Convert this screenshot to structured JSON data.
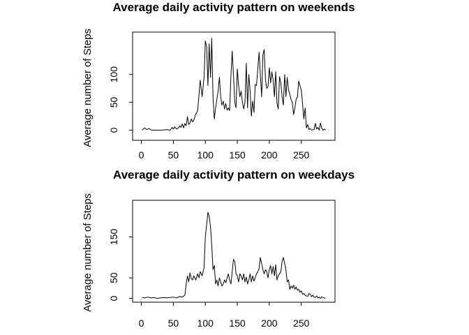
{
  "chart_data": [
    {
      "type": "line",
      "title": "Average daily activity pattern on weekends",
      "xlabel": "",
      "ylabel": "Average number of Steps",
      "xlim": [
        1,
        288
      ],
      "ylim": [
        0,
        166
      ],
      "xticks": [
        0,
        50,
        100,
        150,
        200,
        250
      ],
      "yticks": [
        0,
        50,
        100
      ],
      "grid": false,
      "legend": "none",
      "line_color": "#000000",
      "series": [
        {
          "x": [
            1,
            5,
            8,
            12,
            16,
            20,
            30,
            40,
            45,
            48,
            50,
            52,
            55,
            58,
            60,
            62,
            64,
            66,
            68,
            70,
            72,
            74,
            76,
            78,
            80,
            82,
            85,
            88,
            92,
            95,
            98,
            100,
            102,
            104,
            106,
            108,
            110,
            112,
            114,
            116,
            118,
            120,
            122,
            124,
            126,
            128,
            130,
            132,
            134,
            136,
            138,
            140,
            142,
            144,
            146,
            148,
            150,
            152,
            154,
            156,
            158,
            160,
            162,
            164,
            166,
            168,
            170,
            172,
            174,
            176,
            178,
            180,
            182,
            184,
            186,
            188,
            190,
            192,
            194,
            196,
            198,
            200,
            202,
            204,
            206,
            208,
            210,
            212,
            214,
            216,
            218,
            220,
            222,
            224,
            226,
            228,
            230,
            232,
            234,
            236,
            238,
            240,
            242,
            244,
            246,
            248,
            250,
            252,
            254,
            256,
            258,
            260,
            262,
            264,
            266,
            268,
            270,
            272,
            274,
            276,
            278,
            280,
            282,
            284,
            286,
            288
          ],
          "values": [
            0,
            4,
            1,
            3,
            0,
            0,
            0,
            1,
            0,
            5,
            2,
            6,
            2,
            4,
            8,
            5,
            11,
            4,
            12,
            8,
            24,
            10,
            13,
            20,
            15,
            18,
            29,
            35,
            90,
            60,
            95,
            160,
            150,
            80,
            155,
            95,
            165,
            60,
            20,
            40,
            55,
            70,
            95,
            60,
            45,
            52,
            38,
            48,
            36,
            40,
            35,
            98,
            142,
            100,
            50,
            40,
            110,
            80,
            60,
            70,
            50,
            38,
            50,
            120,
            40,
            100,
            70,
            25,
            52,
            32,
            82,
            80,
            110,
            140,
            100,
            60,
            135,
            145,
            90,
            75,
            78,
            112,
            85,
            105,
            90,
            60,
            105,
            48,
            38,
            96,
            85,
            60,
            45,
            100,
            60,
            95,
            72,
            65,
            55,
            50,
            28,
            40,
            55,
            60,
            88,
            80,
            72,
            48,
            20,
            40,
            4,
            10,
            1,
            3,
            0,
            1,
            1,
            12,
            2,
            5,
            0,
            13,
            3,
            0,
            2,
            0
          ]
        }
      ]
    },
    {
      "type": "line",
      "title": "Average daily activity pattern on weekdays",
      "xlabel": "",
      "ylabel": "Average number of Steps",
      "xlim": [
        1,
        288
      ],
      "ylim": [
        0,
        229
      ],
      "xticks": [
        0,
        50,
        100,
        150,
        200,
        250
      ],
      "yticks": [
        0,
        50,
        150
      ],
      "grid": false,
      "legend": "none",
      "line_color": "#000000",
      "series": [
        {
          "x": [
            1,
            5,
            10,
            15,
            20,
            25,
            30,
            35,
            40,
            45,
            50,
            55,
            60,
            62,
            65,
            68,
            70,
            72,
            74,
            76,
            78,
            80,
            82,
            85,
            88,
            90,
            92,
            95,
            98,
            100,
            102,
            104,
            106,
            108,
            110,
            112,
            114,
            116,
            118,
            120,
            122,
            124,
            126,
            128,
            130,
            132,
            134,
            136,
            138,
            140,
            142,
            144,
            146,
            148,
            150,
            152,
            154,
            156,
            158,
            160,
            162,
            164,
            166,
            168,
            170,
            172,
            174,
            176,
            178,
            180,
            182,
            184,
            186,
            188,
            190,
            192,
            194,
            196,
            198,
            200,
            202,
            204,
            206,
            208,
            210,
            212,
            214,
            216,
            218,
            220,
            222,
            224,
            226,
            228,
            230,
            232,
            234,
            236,
            238,
            240,
            242,
            244,
            246,
            248,
            250,
            252,
            254,
            256,
            258,
            260,
            262,
            264,
            266,
            268,
            270,
            272,
            274,
            276,
            278,
            280,
            282,
            284,
            286,
            288
          ],
          "values": [
            2,
            1,
            3,
            1,
            2,
            0,
            1,
            2,
            1,
            2,
            3,
            1,
            5,
            3,
            4,
            8,
            35,
            55,
            40,
            62,
            48,
            45,
            55,
            45,
            60,
            50,
            65,
            55,
            75,
            150,
            180,
            210,
            200,
            175,
            130,
            70,
            80,
            35,
            45,
            30,
            50,
            40,
            30,
            35,
            45,
            38,
            50,
            60,
            45,
            35,
            65,
            95,
            90,
            60,
            55,
            40,
            60,
            55,
            45,
            60,
            40,
            52,
            35,
            45,
            60,
            40,
            55,
            42,
            50,
            60,
            65,
            72,
            100,
            85,
            70,
            60,
            70,
            65,
            50,
            70,
            80,
            60,
            78,
            55,
            82,
            45,
            55,
            60,
            65,
            90,
            100,
            85,
            70,
            40,
            45,
            22,
            30,
            25,
            32,
            22,
            28,
            20,
            22,
            15,
            18,
            10,
            12,
            8,
            6,
            5,
            12,
            10,
            4,
            8,
            3,
            2,
            6,
            1,
            3,
            0,
            4,
            2,
            1,
            0
          ]
        }
      ]
    }
  ]
}
